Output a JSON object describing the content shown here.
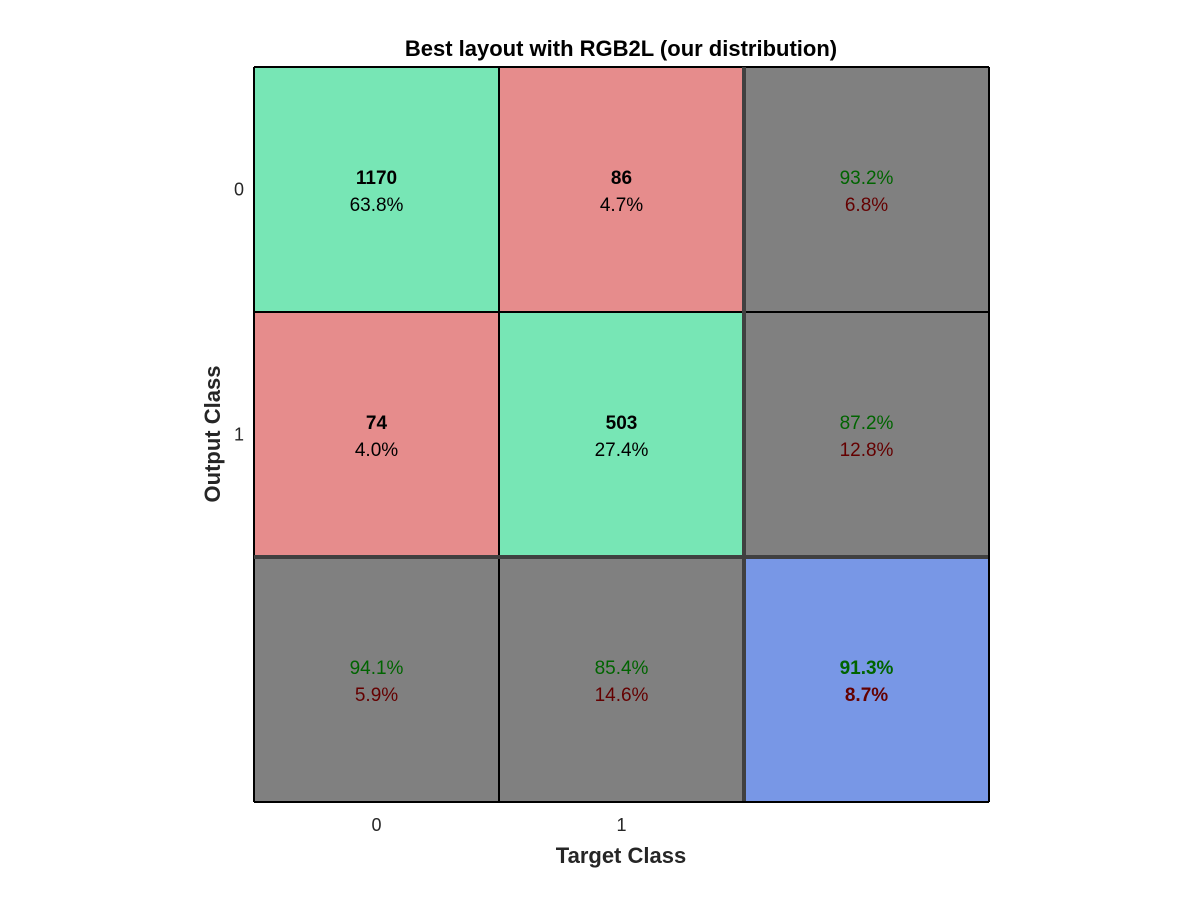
{
  "chart_data": {
    "type": "heatmap",
    "title": "Best layout with RGB2L (our distribution)",
    "xlabel": "Target Class",
    "ylabel": "Output Class",
    "x_tick_labels": [
      "0",
      "1"
    ],
    "y_tick_labels": [
      "0",
      "1"
    ],
    "cells": [
      {
        "row": 0,
        "col": 0,
        "kind": "correct",
        "count": "1170",
        "percent": "63.8%"
      },
      {
        "row": 0,
        "col": 1,
        "kind": "incorrect",
        "count": "86",
        "percent": "4.7%"
      },
      {
        "row": 1,
        "col": 0,
        "kind": "incorrect",
        "count": "74",
        "percent": "4.0%"
      },
      {
        "row": 1,
        "col": 1,
        "kind": "correct",
        "count": "503",
        "percent": "27.4%"
      },
      {
        "row": 0,
        "col": 2,
        "kind": "summary",
        "good": "93.2%",
        "bad": "6.8%"
      },
      {
        "row": 1,
        "col": 2,
        "kind": "summary",
        "good": "87.2%",
        "bad": "12.8%"
      },
      {
        "row": 2,
        "col": 0,
        "kind": "summary",
        "good": "94.1%",
        "bad": "5.9%"
      },
      {
        "row": 2,
        "col": 1,
        "kind": "summary",
        "good": "85.4%",
        "bad": "14.6%"
      },
      {
        "row": 2,
        "col": 2,
        "kind": "overall",
        "good": "91.3%",
        "bad": "8.7%"
      }
    ],
    "colors": {
      "correct": "#77e6b5",
      "incorrect": "#e68c8c",
      "summary": "#808080",
      "overall": "#7897e6",
      "good_text": "#006400",
      "bad_text": "#640000",
      "main_text": "#000000",
      "axis_text": "#262626"
    }
  }
}
